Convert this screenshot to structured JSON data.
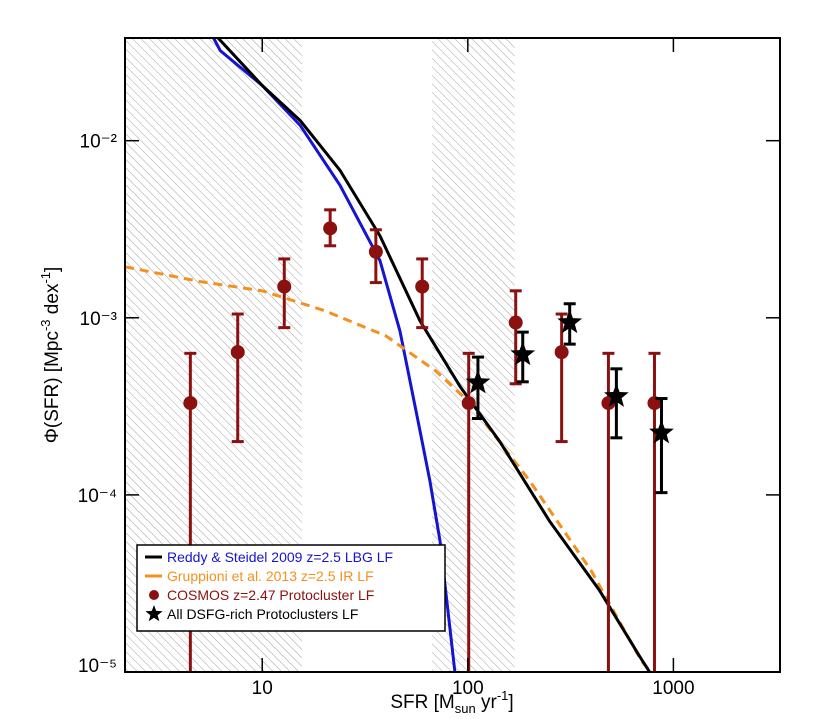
{
  "chart_data": {
    "type": "scatter",
    "log_x": true,
    "log_y": true,
    "x_label": [
      "SFR [M",
      "sun",
      " yr",
      "-1",
      "]"
    ],
    "y_label": [
      "Φ(SFR) [Mpc",
      "-3",
      " dex",
      "-1",
      "]"
    ],
    "xlim": [
      2.15,
      3300
    ],
    "ylim": [
      1e-05,
      0.038
    ],
    "xticks": [
      10,
      100,
      1000
    ],
    "yticks": [
      {
        "value": 0.01,
        "label": "10⁻²"
      },
      {
        "value": 0.001,
        "label": "10⁻³"
      },
      {
        "value": 0.0001,
        "label": "10⁻⁴"
      },
      {
        "value": 1e-05,
        "label": "10⁻⁵"
      }
    ],
    "shaded_x_ranges": [
      [
        2.15,
        15.6
      ],
      [
        67,
        169
      ]
    ],
    "lines": [
      {
        "name": "Reddy & Steidel 2009 z=2.5 LBG LF",
        "color": "#1414d2",
        "legend_color": "#000000",
        "dashed": false,
        "x": [
          5.8,
          6.25,
          10,
          15.3,
          23.9,
          37.4,
          46.8,
          58.5,
          65.4,
          73.2,
          86.5
        ],
        "values": [
          0.038,
          0.0322,
          0.0205,
          0.0122,
          0.0056,
          0.0021,
          0.00084,
          0.00023,
          0.00012,
          5.5e-05,
          1e-05
        ]
      },
      {
        "name": "Gruppioni et al. 2013 z=2.5 IR LF",
        "color": "#f5901e",
        "dashed": true,
        "x": [
          2.15,
          5,
          10,
          20,
          40,
          70,
          100,
          200,
          400,
          700,
          780
        ],
        "values": [
          0.00194,
          0.0016,
          0.00142,
          0.0011,
          0.00079,
          0.0005,
          0.00034,
          0.00012,
          3.7e-05,
          1.15e-05,
          1e-05
        ]
      },
      {
        "color": "#000000",
        "dashed": false,
        "x": [
          6.1,
          10,
          15.3,
          23.9,
          37.4,
          58.5,
          91.6,
          143,
          250,
          436,
          684,
          766
        ],
        "values": [
          0.038,
          0.0205,
          0.013,
          0.0068,
          0.0029,
          0.00096,
          0.00041,
          0.0002,
          7.1e-05,
          2.9e-05,
          1.23e-05,
          1e-05
        ]
      }
    ],
    "series": [
      {
        "name": "COSMOS z=2.47 Protocluster LF",
        "color": "#8b1010",
        "marker": "circle",
        "x": [
          4.47,
          7.6,
          12.8,
          21.4,
          35.7,
          60,
          101,
          171,
          286,
          483,
          809
        ],
        "values": [
          0.00033,
          0.00064,
          0.0015,
          0.0032,
          0.00236,
          0.0015,
          0.00033,
          0.00094,
          0.00064,
          0.00033,
          0.00033
        ],
        "lower": [
          1e-05,
          0.0002,
          0.00088,
          0.00255,
          0.00158,
          0.00088,
          1e-05,
          0.000424,
          0.0002,
          1e-05,
          1e-05
        ],
        "upper": [
          0.00063,
          0.00105,
          0.00215,
          0.00407,
          0.00314,
          0.00215,
          0.00063,
          0.00142,
          0.00105,
          0.00063,
          0.00063
        ]
      },
      {
        "name": "All DSFG-rich Protoclusters LF",
        "color": "#000000",
        "marker": "star",
        "x": [
          112,
          185,
          313,
          528,
          875
        ],
        "values": [
          0.00043,
          0.00062,
          0.00094,
          0.00036,
          0.000224
        ],
        "lower": [
          0.00027,
          0.000435,
          0.00071,
          0.00021,
          0.000103
        ],
        "upper": [
          0.0006,
          0.00083,
          0.0012,
          0.000515,
          0.00035
        ]
      }
    ]
  }
}
